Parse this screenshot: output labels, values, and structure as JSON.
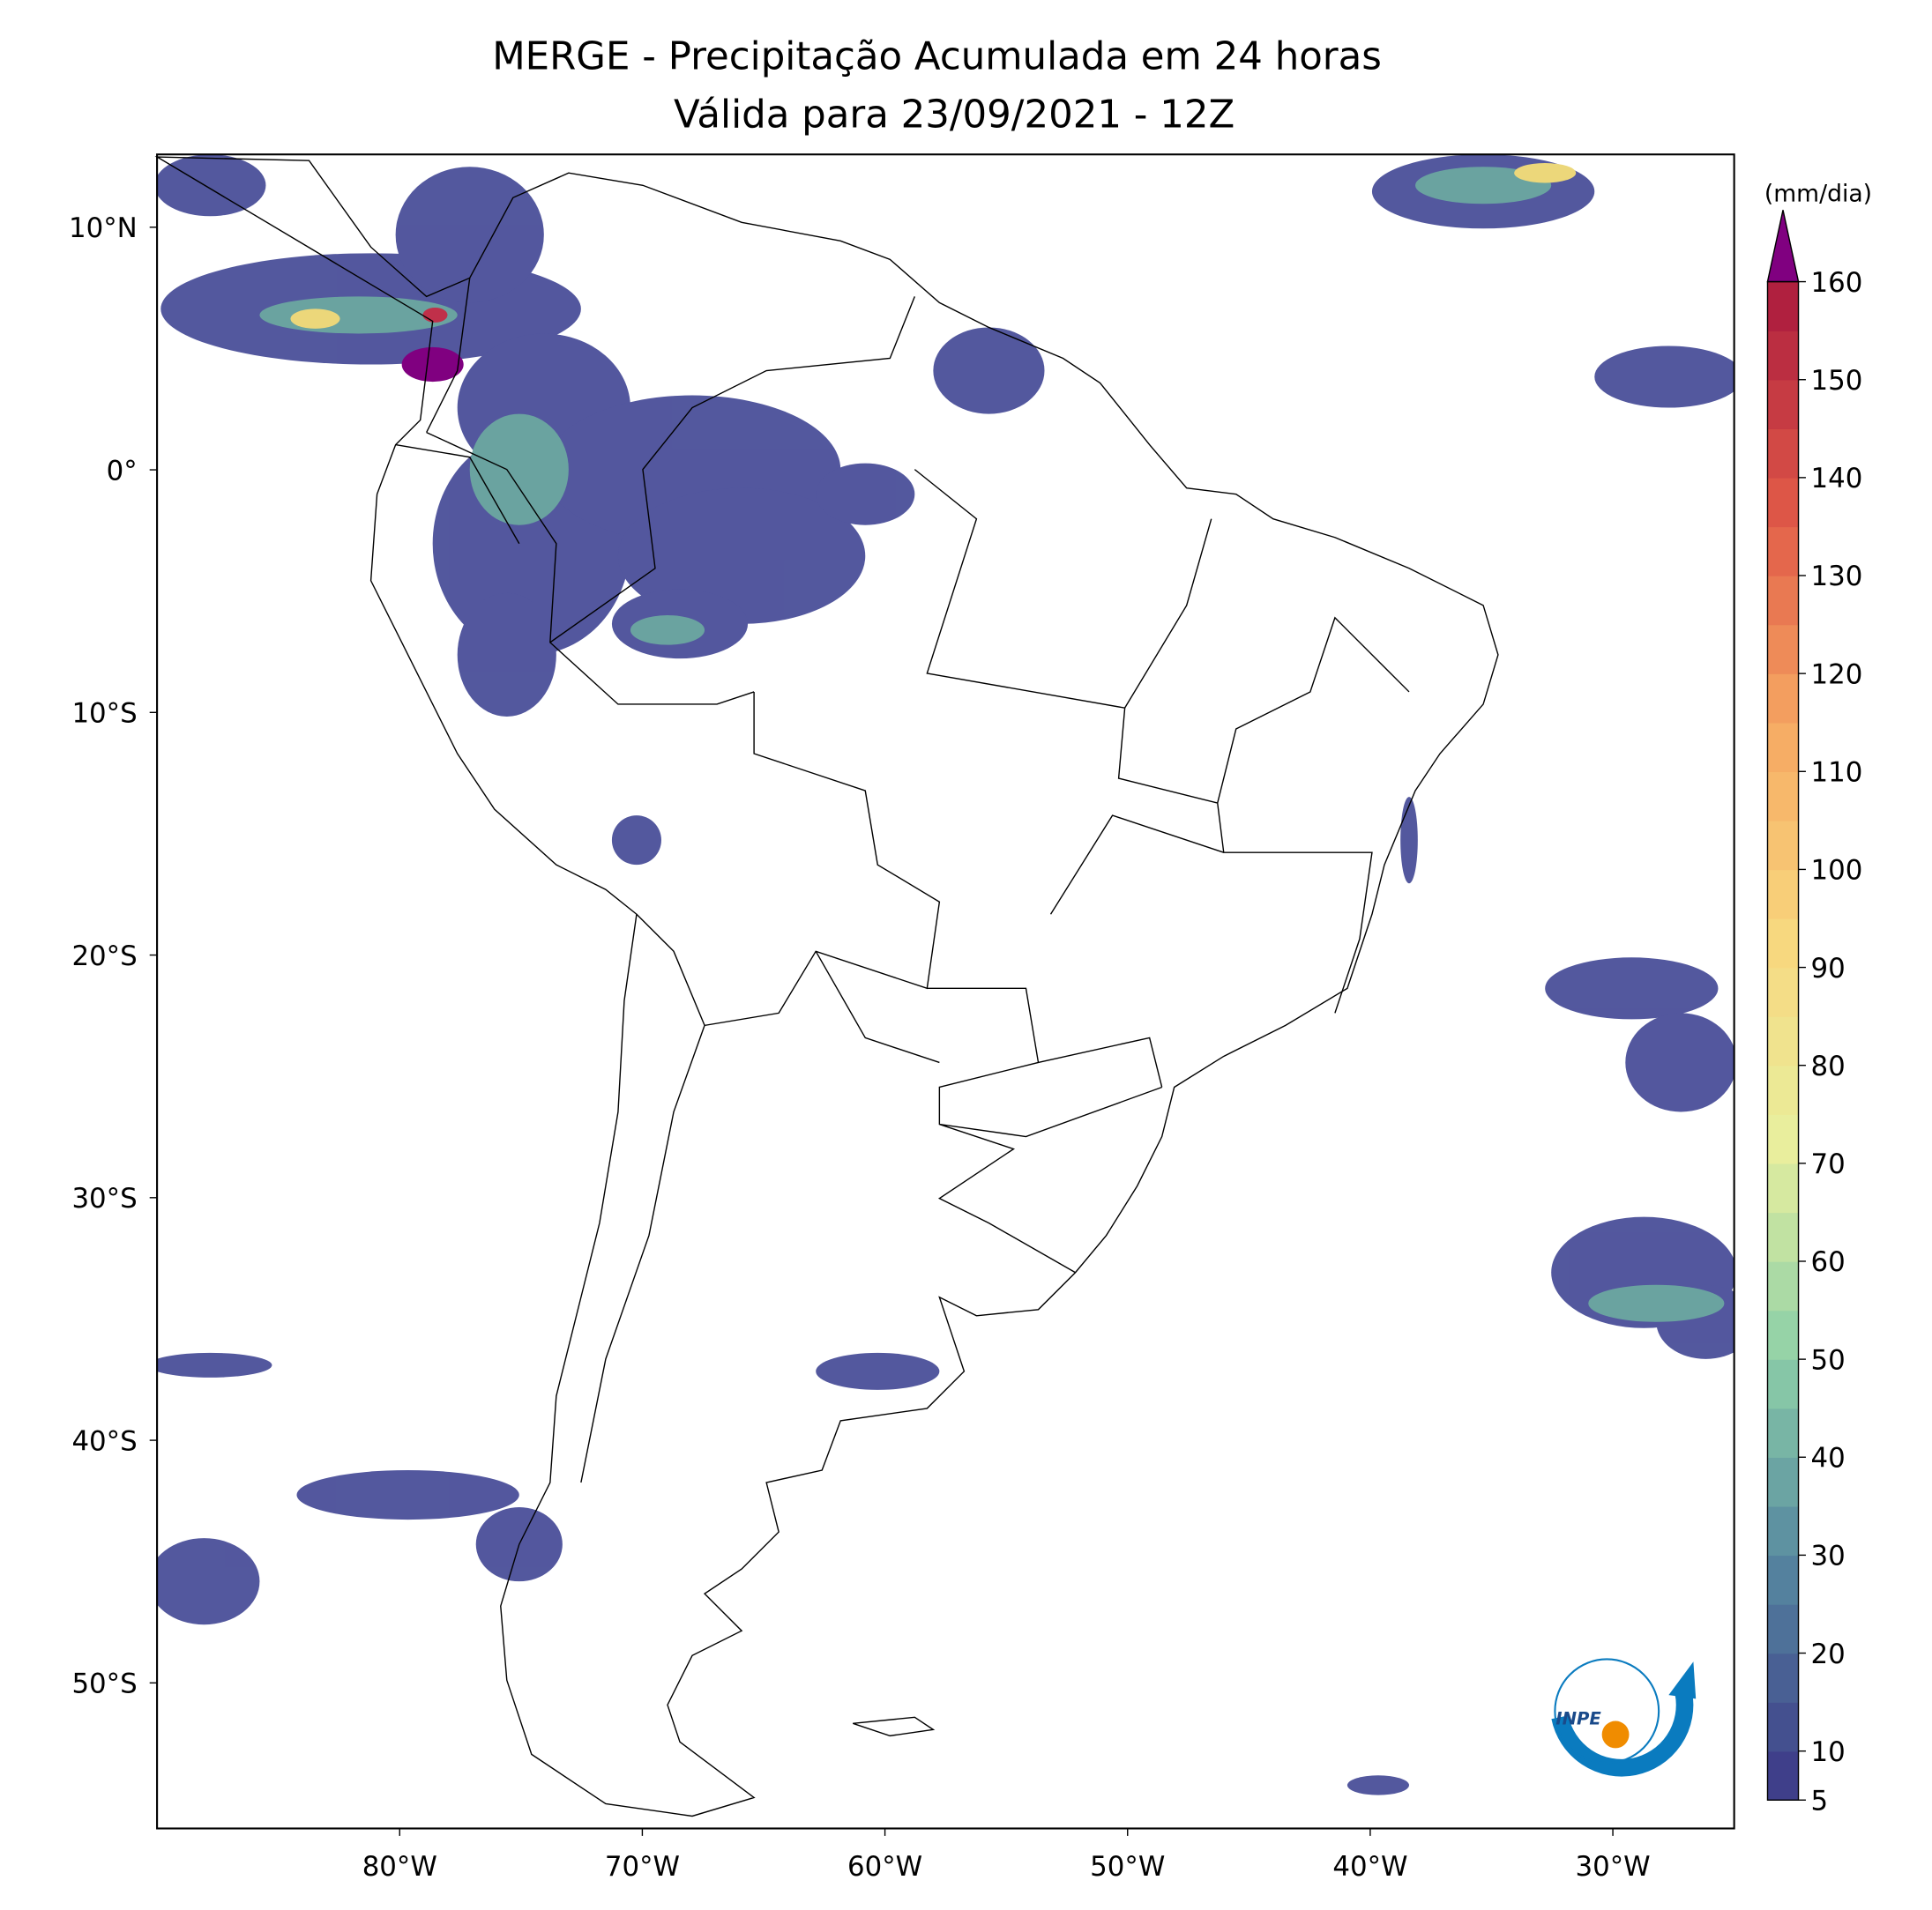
{
  "title": "MERGE - Precipitação Acumulada em 24 horas",
  "subtitle": "Válida para 23/09/2021 - 12Z",
  "map": {
    "xlim": [
      -90,
      -25
    ],
    "ylim": [
      -56,
      13
    ],
    "xticks": [
      {
        "value": -80,
        "label": "80°W"
      },
      {
        "value": -70,
        "label": "70°W"
      },
      {
        "value": -60,
        "label": "60°W"
      },
      {
        "value": -50,
        "label": "50°W"
      },
      {
        "value": -40,
        "label": "40°W"
      },
      {
        "value": -30,
        "label": "30°W"
      }
    ],
    "yticks": [
      {
        "value": 10,
        "label": "10°N"
      },
      {
        "value": 0,
        "label": "0°"
      },
      {
        "value": -10,
        "label": "10°S"
      },
      {
        "value": -20,
        "label": "20°S"
      },
      {
        "value": -30,
        "label": "30°S"
      },
      {
        "value": -40,
        "label": "40°S"
      },
      {
        "value": -50,
        "label": "50°S"
      }
    ]
  },
  "colorbar": {
    "label": "(mm/dia)",
    "lim": [
      5,
      160
    ],
    "ticks": [
      5,
      10,
      20,
      30,
      40,
      50,
      60,
      70,
      80,
      90,
      100,
      110,
      120,
      130,
      140,
      150,
      160
    ],
    "colors": [
      "#3f3f8a",
      "#55869f",
      "#8dd0a8",
      "#e8ef9e",
      "#f8d77e",
      "#f6a862",
      "#e05a48",
      "#b0203f"
    ],
    "extend_color": "#800080"
  },
  "logo": "INPE"
}
